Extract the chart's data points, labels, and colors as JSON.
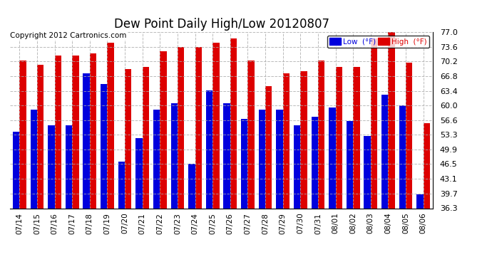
{
  "title": "Dew Point Daily High/Low 20120807",
  "copyright": "Copyright 2012 Cartronics.com",
  "dates": [
    "07/14",
    "07/15",
    "07/16",
    "07/17",
    "07/18",
    "07/19",
    "07/20",
    "07/21",
    "07/22",
    "07/23",
    "07/24",
    "07/25",
    "07/26",
    "07/27",
    "07/28",
    "07/29",
    "07/30",
    "07/31",
    "08/01",
    "08/02",
    "08/03",
    "08/04",
    "08/05",
    "08/06"
  ],
  "low": [
    54.0,
    59.0,
    55.5,
    55.5,
    67.5,
    65.0,
    47.0,
    52.5,
    59.0,
    60.5,
    46.5,
    63.5,
    60.5,
    57.0,
    59.0,
    59.0,
    55.5,
    57.5,
    59.5,
    56.5,
    53.0,
    62.5,
    60.0,
    39.5
  ],
  "high": [
    70.5,
    69.5,
    71.5,
    71.5,
    72.0,
    74.5,
    68.5,
    69.0,
    72.5,
    73.5,
    73.5,
    74.5,
    75.5,
    70.5,
    64.5,
    67.5,
    68.0,
    70.5,
    69.0,
    69.0,
    75.5,
    77.0,
    70.0,
    56.0
  ],
  "ymin": 36.3,
  "ymax": 77.0,
  "yticks": [
    36.3,
    39.7,
    43.1,
    46.5,
    49.9,
    53.3,
    56.6,
    60.0,
    63.4,
    66.8,
    70.2,
    73.6,
    77.0
  ],
  "low_color": "#0000dd",
  "high_color": "#dd0000",
  "background_color": "#ffffff",
  "grid_color": "#aaaaaa",
  "title_fontsize": 12,
  "copyright_fontsize": 7.5,
  "legend_low_label": "Low  (°F)",
  "legend_high_label": "High  (°F)"
}
